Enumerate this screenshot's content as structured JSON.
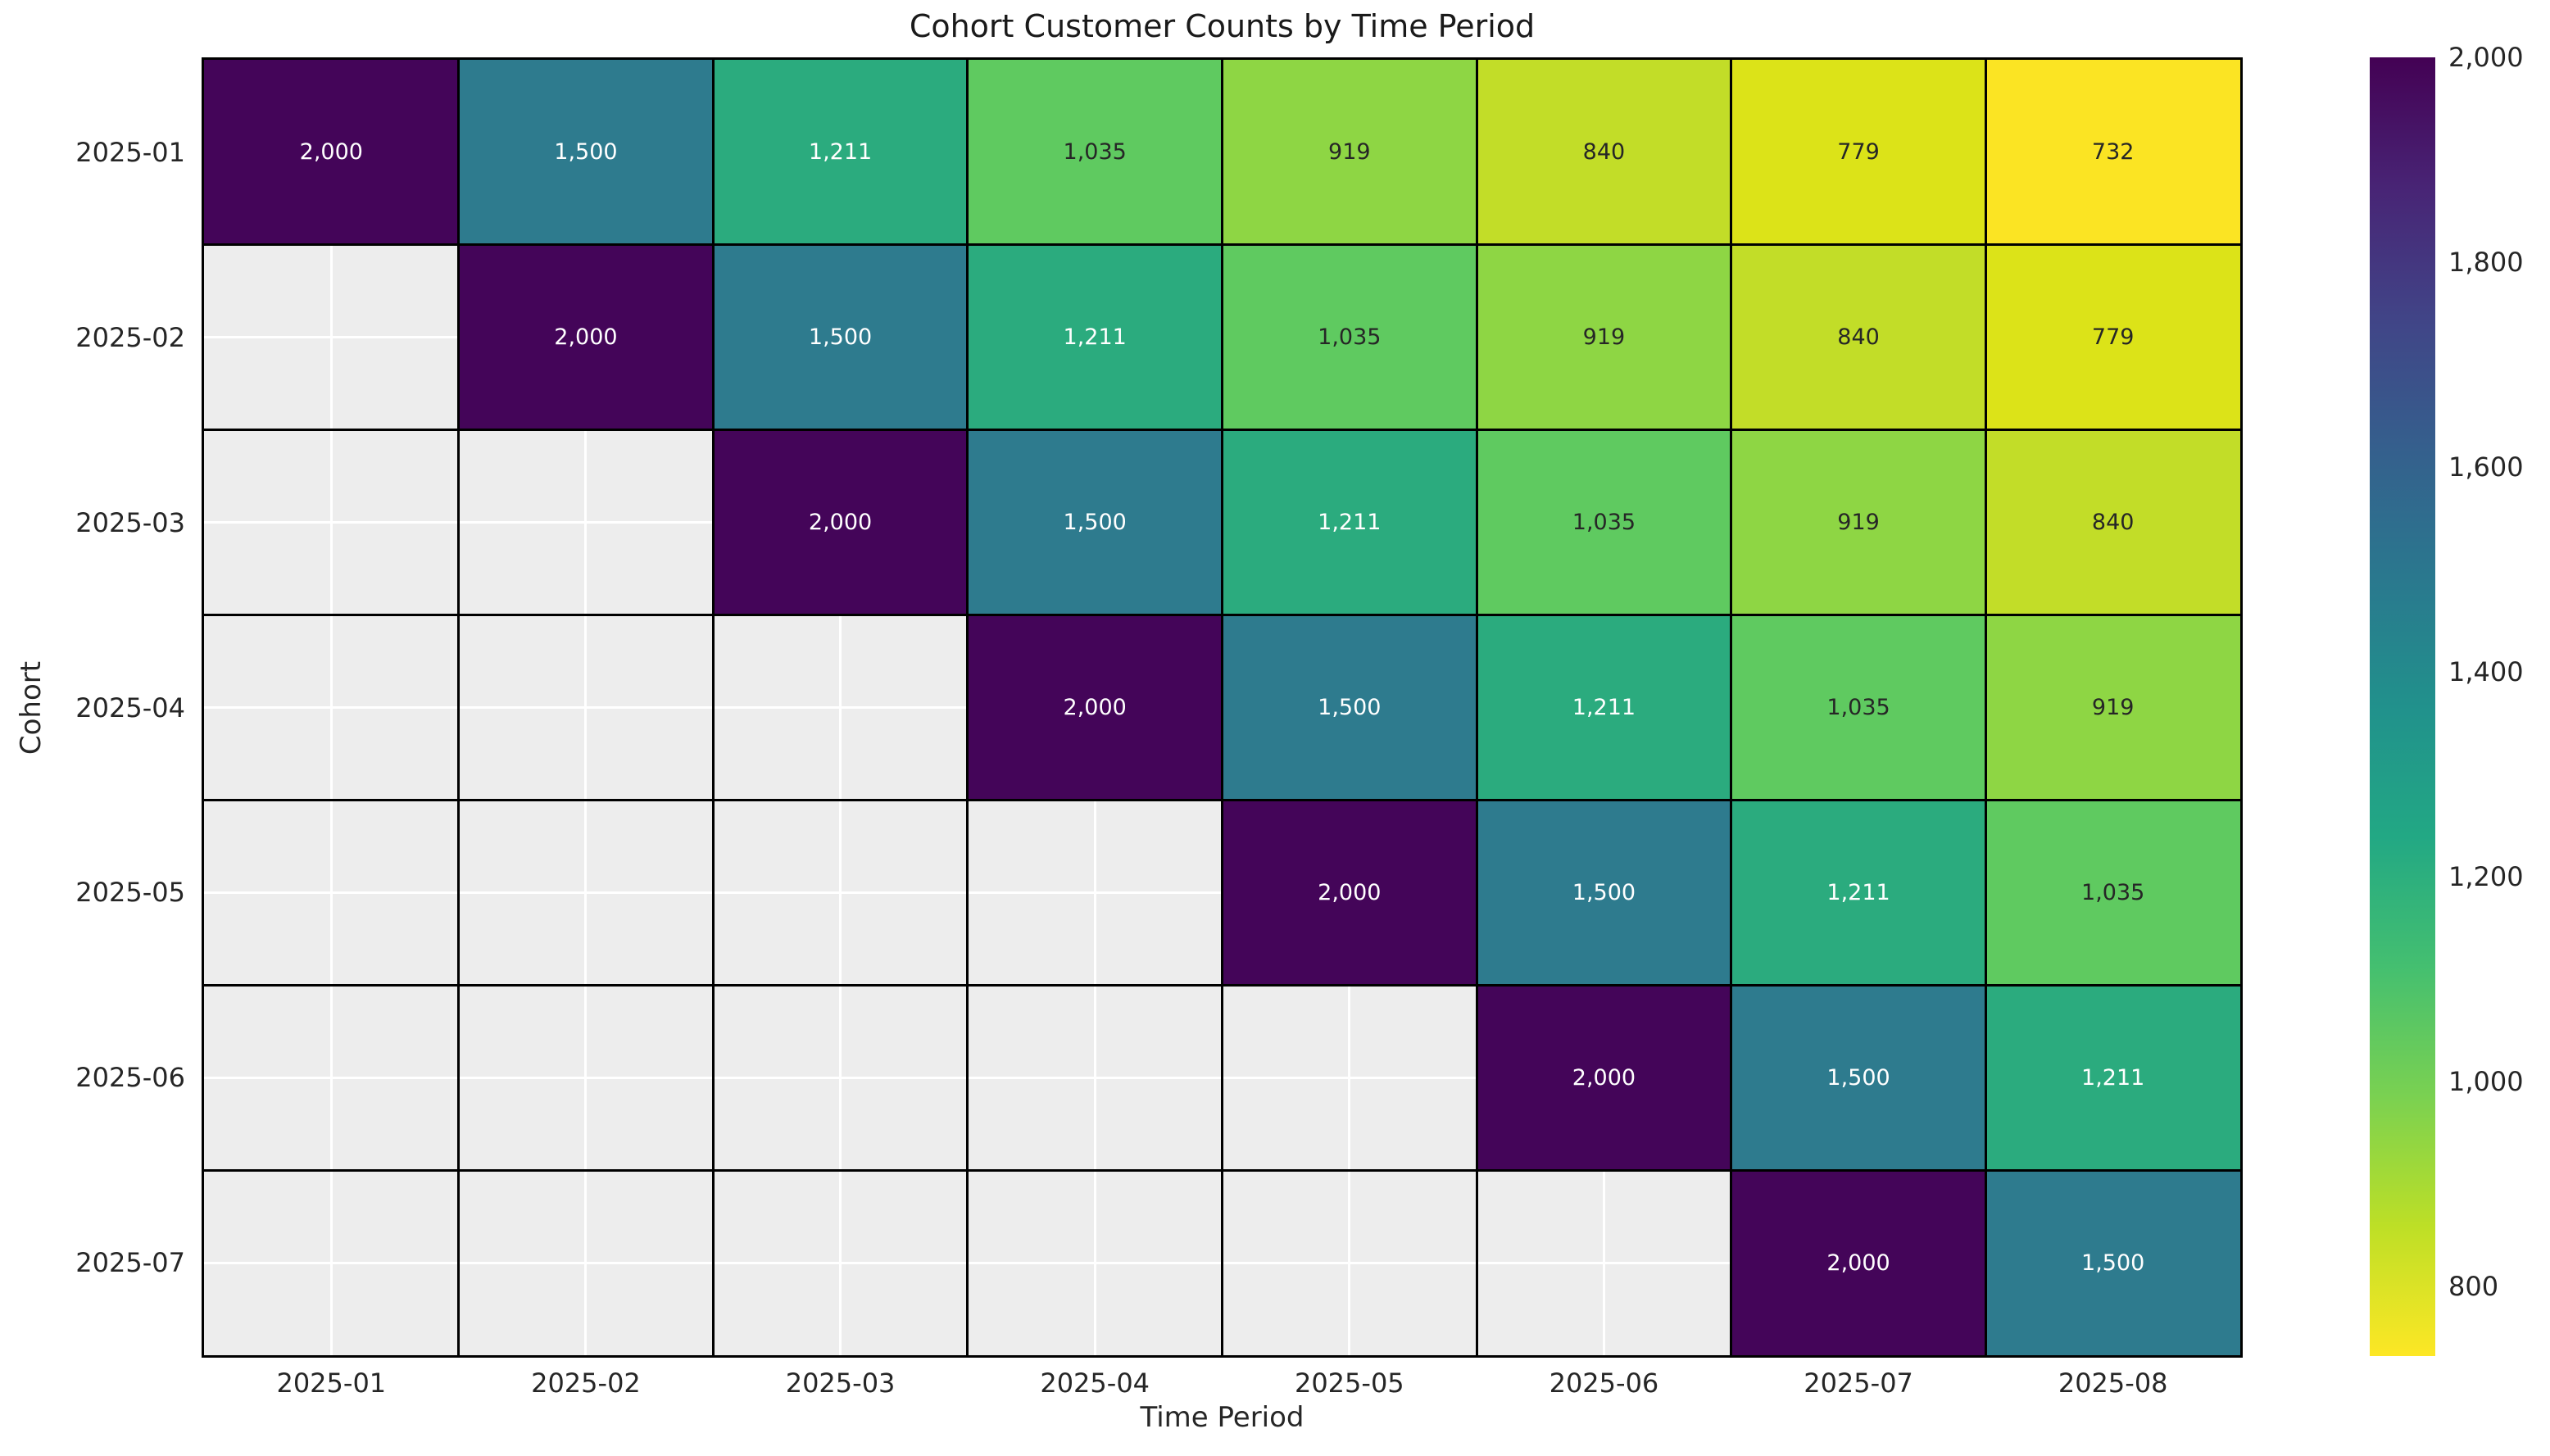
{
  "figure": {
    "background": "#ffffff",
    "text_color": "#262626",
    "title_color": "#1a1a1a"
  },
  "chart_data": {
    "type": "heatmap",
    "title": "Cohort Customer Counts by Time Period",
    "xlabel": "Time Period",
    "ylabel": "Cohort",
    "x_labels": [
      "2025-01",
      "2025-02",
      "2025-03",
      "2025-04",
      "2025-05",
      "2025-06",
      "2025-07",
      "2025-08"
    ],
    "y_labels": [
      "2025-01",
      "2025-02",
      "2025-03",
      "2025-04",
      "2025-05",
      "2025-06",
      "2025-07"
    ],
    "matrix": [
      [
        2000,
        1500,
        1211,
        1035,
        919,
        840,
        779,
        732
      ],
      [
        null,
        2000,
        1500,
        1211,
        1035,
        919,
        840,
        779
      ],
      [
        null,
        null,
        2000,
        1500,
        1211,
        1035,
        919,
        840
      ],
      [
        null,
        null,
        null,
        2000,
        1500,
        1211,
        1035,
        919
      ],
      [
        null,
        null,
        null,
        null,
        2000,
        1500,
        1211,
        1035
      ],
      [
        null,
        null,
        null,
        null,
        null,
        2000,
        1500,
        1211
      ],
      [
        null,
        null,
        null,
        null,
        null,
        null,
        2000,
        1500
      ]
    ],
    "vmin": 732,
    "vmax": 2000,
    "colormap": "viridis reversed (high = dark purple, low = yellow)",
    "missing_color": "#ededed",
    "grid_color": "#ffffff",
    "frame_color": "#000000",
    "value_colors": {
      "2000": "#440559",
      "1500": "#2e7b8e",
      "1211": "#2bab7e",
      "1035": "#5fca60",
      "919": "#8ed644",
      "840": "#c2dd28",
      "779": "#dce318",
      "732": "#fbe423"
    },
    "value_text_colors": {
      "2000": "#ffffff",
      "1500": "#ffffff",
      "1211": "#ffffff",
      "1035": "#262626",
      "919": "#262626",
      "840": "#262626",
      "779": "#262626",
      "732": "#262626"
    },
    "colorbar": {
      "tick_values": [
        2000,
        1800,
        1600,
        1400,
        1200,
        1000,
        800
      ],
      "tick_labels": [
        "2,000",
        "1,800",
        "1,600",
        "1,400",
        "1,200",
        "1,000",
        "800"
      ],
      "gradient_stops": [
        "#440154",
        "#482475",
        "#414487",
        "#355f8d",
        "#2a788e",
        "#21918c",
        "#22a884",
        "#44bf70",
        "#7ad151",
        "#bddf26",
        "#fde725"
      ]
    }
  }
}
